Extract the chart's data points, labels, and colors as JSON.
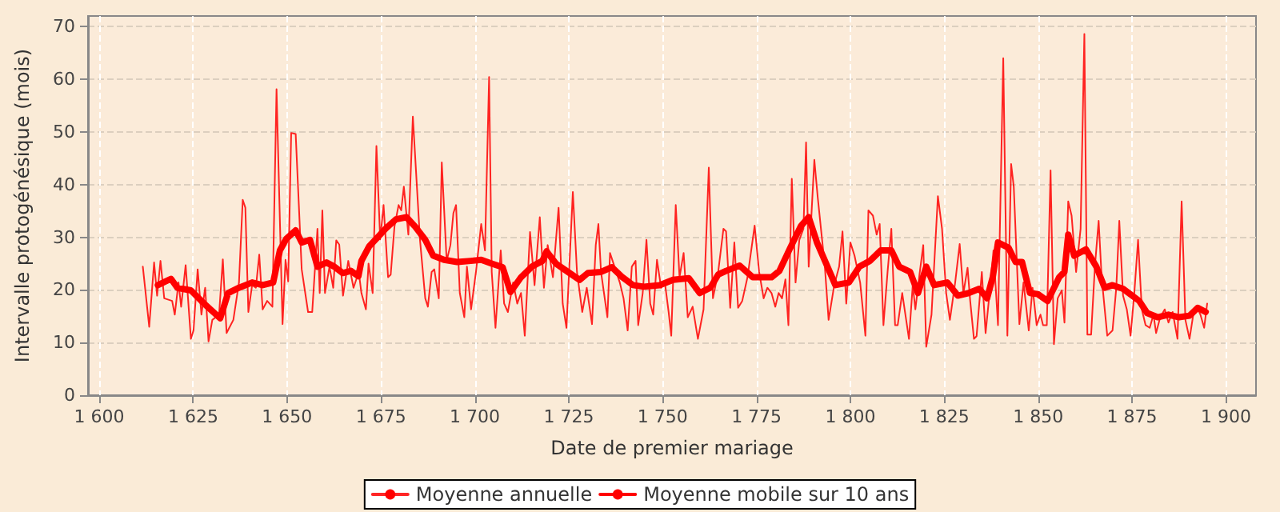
{
  "chart_data": {
    "type": "line",
    "xlabel": "Date de premier mariage",
    "ylabel": "Intervalle protogénésique (mois)",
    "xlim": [
      1597,
      1908
    ],
    "ylim": [
      0,
      72
    ],
    "xticks": [
      {
        "value": 1600,
        "label": "1 600"
      },
      {
        "value": 1625,
        "label": "1 625"
      },
      {
        "value": 1650,
        "label": "1 650"
      },
      {
        "value": 1675,
        "label": "1 675"
      },
      {
        "value": 1700,
        "label": "1 700"
      },
      {
        "value": 1725,
        "label": "1 725"
      },
      {
        "value": 1750,
        "label": "1 750"
      },
      {
        "value": 1775,
        "label": "1 775"
      },
      {
        "value": 1800,
        "label": "1 800"
      },
      {
        "value": 1825,
        "label": "1 825"
      },
      {
        "value": 1850,
        "label": "1 850"
      },
      {
        "value": 1875,
        "label": "1 875"
      },
      {
        "value": 1900,
        "label": "1 900"
      }
    ],
    "yticks": [
      0,
      10,
      20,
      30,
      40,
      50,
      60,
      70
    ],
    "grid": true,
    "legend": "bottom",
    "marker": "none",
    "series": [
      {
        "name": "Moyenne annuelle",
        "color": "#ff0000",
        "x": [
          1611.6,
          1613.3,
          1614.6,
          1615.4,
          1616.3,
          1617.3,
          1619.4,
          1620.1,
          1621.1,
          1621.8,
          1623.0,
          1624.4,
          1625.1,
          1626.2,
          1627.2,
          1628.2,
          1629.1,
          1630.1,
          1631.9,
          1632.9,
          1633.9,
          1635.7,
          1637.2,
          1638.2,
          1638.9,
          1639.7,
          1640.7,
          1641.7,
          1642.6,
          1643.5,
          1644.7,
          1646.1,
          1647.2,
          1648.8,
          1649.6,
          1650.3,
          1651.1,
          1652.3,
          1653.9,
          1655.6,
          1656.7,
          1658.1,
          1658.7,
          1659.4,
          1660.1,
          1661.3,
          1662.3,
          1663.1,
          1663.9,
          1664.9,
          1666.3,
          1667.7,
          1669.1,
          1669.8,
          1671.0,
          1671.7,
          1672.8,
          1673.8,
          1674.8,
          1675.7,
          1676.9,
          1677.6,
          1678.6,
          1679.7,
          1680.4,
          1681.1,
          1682.3,
          1683.5,
          1685.4,
          1686.8,
          1687.5,
          1688.5,
          1689.2,
          1690.4,
          1691.2,
          1692.5,
          1693.5,
          1694.3,
          1695.0,
          1696.0,
          1697.2,
          1697.9,
          1699.0,
          1700.3,
          1701.7,
          1702.7,
          1703.8,
          1704.5,
          1705.5,
          1706.9,
          1707.8,
          1708.8,
          1710.2,
          1711.3,
          1712.3,
          1713.3,
          1714.7,
          1715.9,
          1717.3,
          1718.4,
          1719.4,
          1720.8,
          1722.3,
          1723.4,
          1724.4,
          1726.1,
          1727.2,
          1728.6,
          1729.8,
          1731.2,
          1732.2,
          1732.9,
          1733.6,
          1735.3,
          1736.0,
          1737.2,
          1738.6,
          1739.6,
          1740.7,
          1741.8,
          1742.8,
          1743.5,
          1744.7,
          1745.7,
          1746.7,
          1747.5,
          1748.5,
          1749.6,
          1750.6,
          1751.6,
          1752.3,
          1753.5,
          1754.5,
          1755.6,
          1756.7,
          1758.0,
          1759.4,
          1760.9,
          1762.3,
          1763.4,
          1764.8,
          1766.2,
          1766.9,
          1768.0,
          1769.1,
          1770.1,
          1771.2,
          1772.6,
          1774.5,
          1775.7,
          1776.9,
          1777.9,
          1779.0,
          1780.0,
          1780.9,
          1781.8,
          1782.7,
          1783.5,
          1784.4,
          1785.4,
          1786.4,
          1787.5,
          1788.2,
          1788.9,
          1790.4,
          1791.3,
          1793.2,
          1794.2,
          1795.7,
          1797.0,
          1797.9,
          1798.9,
          1800.0,
          1801.1,
          1802.6,
          1804.0,
          1804.8,
          1806.0,
          1807.0,
          1807.8,
          1808.8,
          1809.9,
          1810.9,
          1811.9,
          1812.6,
          1813.8,
          1815.6,
          1816.6,
          1817.3,
          1818.4,
          1819.4,
          1820.2,
          1821.6,
          1823.3,
          1824.4,
          1825.5,
          1826.5,
          1827.9,
          1829.1,
          1830.1,
          1831.2,
          1831.9,
          1832.9,
          1833.6,
          1835.0,
          1836.0,
          1837.2,
          1838.1,
          1839.3,
          1840.7,
          1841.8,
          1842.8,
          1843.5,
          1845.0,
          1846.1,
          1847.5,
          1848.5,
          1849.6,
          1850.6,
          1851.3,
          1852.3,
          1853.3,
          1854.2,
          1855.2,
          1856.3,
          1857.0,
          1858.0,
          1858.9,
          1860.1,
          1861.3,
          1862.3,
          1863.1,
          1864.1,
          1865.1,
          1866.1,
          1866.9,
          1868.4,
          1869.8,
          1870.8,
          1871.6,
          1872.6,
          1873.6,
          1874.6,
          1875.6,
          1876.6,
          1877.6,
          1878.6,
          1879.7,
          1880.7,
          1881.4,
          1882.5,
          1883.7,
          1884.7,
          1885.8,
          1887.1,
          1888.2,
          1889.2,
          1890.3,
          1891.3,
          1892.2,
          1893.2,
          1894.2,
          1895.0
        ],
        "values": [
          24.4,
          13.0,
          25.2,
          18.9,
          25.5,
          18.4,
          17.9,
          15.3,
          21.4,
          16.8,
          24.7,
          10.7,
          12.3,
          23.9,
          15.3,
          20.4,
          10.2,
          14.3,
          15.3,
          25.8,
          11.8,
          14.3,
          21.4,
          37.1,
          35.6,
          15.8,
          20.9,
          20.4,
          26.7,
          16.3,
          17.9,
          16.8,
          58.1,
          13.5,
          25.7,
          21.6,
          49.8,
          49.6,
          23.9,
          15.8,
          15.8,
          31.6,
          19.4,
          35.1,
          19.4,
          24.4,
          20.4,
          29.4,
          28.6,
          18.9,
          25.5,
          20.4,
          23.4,
          19.4,
          16.3,
          25.0,
          19.4,
          47.3,
          29.6,
          36.1,
          22.4,
          22.9,
          32.0,
          36.1,
          35.1,
          39.6,
          30.5,
          52.9,
          29.5,
          18.4,
          16.8,
          23.4,
          23.9,
          18.4,
          44.2,
          25.5,
          28.5,
          34.6,
          36.1,
          19.4,
          14.8,
          24.4,
          16.3,
          23.4,
          32.5,
          27.5,
          60.4,
          23.4,
          12.8,
          27.5,
          17.4,
          15.8,
          21.4,
          17.4,
          19.4,
          11.3,
          31.0,
          20.9,
          33.8,
          20.4,
          28.5,
          22.4,
          35.6,
          17.4,
          12.8,
          38.6,
          23.4,
          15.8,
          20.4,
          13.5,
          28.5,
          32.5,
          23.4,
          14.8,
          27.0,
          24.4,
          21.4,
          18.4,
          12.3,
          24.4,
          25.5,
          13.3,
          19.4,
          29.5,
          17.4,
          15.3,
          25.7,
          20.4,
          21.4,
          15.8,
          11.3,
          36.1,
          22.4,
          27.0,
          14.8,
          16.8,
          10.7,
          16.3,
          43.2,
          18.4,
          23.4,
          31.6,
          31.1,
          16.6,
          29.0,
          16.6,
          17.9,
          22.4,
          32.2,
          23.4,
          18.4,
          20.4,
          19.4,
          16.8,
          19.4,
          18.4,
          22.0,
          13.3,
          41.1,
          21.4,
          29.5,
          31.6,
          48.0,
          24.4,
          44.7,
          37.6,
          24.4,
          14.3,
          20.9,
          24.4,
          31.1,
          17.4,
          29.0,
          26.5,
          21.4,
          11.3,
          35.1,
          34.1,
          30.5,
          32.5,
          13.3,
          23.4,
          31.6,
          13.3,
          13.3,
          19.4,
          10.7,
          20.9,
          16.3,
          22.9,
          28.5,
          9.2,
          15.3,
          37.8,
          31.6,
          19.4,
          14.3,
          21.4,
          28.7,
          19.4,
          24.2,
          17.9,
          10.7,
          11.2,
          23.4,
          11.8,
          20.4,
          27.5,
          13.3,
          64.0,
          11.3,
          43.9,
          39.6,
          13.5,
          21.4,
          12.3,
          20.4,
          13.3,
          15.3,
          13.3,
          13.3,
          42.7,
          9.7,
          18.4,
          19.9,
          13.8,
          36.8,
          34.1,
          23.4,
          31.6,
          68.6,
          11.5,
          11.5,
          24.4,
          33.1,
          22.4,
          11.3,
          12.3,
          20.4,
          33.1,
          18.9,
          16.3,
          11.3,
          19.4,
          29.5,
          16.3,
          13.3,
          12.8,
          15.3,
          11.8,
          14.8,
          16.3,
          13.8,
          15.8,
          10.7,
          36.8,
          14.3,
          10.7,
          15.3,
          16.8,
          15.3,
          12.8,
          17.4
        ]
      },
      {
        "name": "Moyenne mobile sur 10 ans",
        "color": "#ff0000",
        "x": [
          1615.6,
          1619.1,
          1620.8,
          1624.4,
          1627.9,
          1632.2,
          1634.3,
          1637.2,
          1640.7,
          1643.5,
          1646.3,
          1648.1,
          1649.8,
          1652.3,
          1653.9,
          1656.1,
          1658.1,
          1660.5,
          1662.6,
          1664.8,
          1667.0,
          1669.0,
          1669.8,
          1671.9,
          1674.8,
          1676.2,
          1679.0,
          1681.8,
          1684.0,
          1686.8,
          1688.9,
          1691.8,
          1695.3,
          1698.9,
          1701.7,
          1704.5,
          1707.4,
          1709.5,
          1712.3,
          1715.2,
          1718.0,
          1719.1,
          1721.6,
          1724.4,
          1727.9,
          1730.1,
          1733.6,
          1736.5,
          1739.3,
          1742.1,
          1745.0,
          1749.2,
          1752.8,
          1757.0,
          1759.9,
          1762.7,
          1764.8,
          1766.9,
          1770.5,
          1774.0,
          1779.0,
          1781.1,
          1784.0,
          1786.8,
          1788.9,
          1791.1,
          1793.9,
          1796.0,
          1799.6,
          1802.4,
          1805.2,
          1808.1,
          1810.9,
          1813.0,
          1815.9,
          1818.0,
          1820.2,
          1822.3,
          1825.8,
          1828.6,
          1831.5,
          1834.3,
          1836.4,
          1837.9,
          1839.3,
          1842.1,
          1844.0,
          1845.7,
          1847.8,
          1849.9,
          1852.5,
          1855.6,
          1857.0,
          1858.0,
          1859.6,
          1862.7,
          1865.5,
          1867.7,
          1869.8,
          1872.6,
          1876.9,
          1879.0,
          1881.8,
          1884.7,
          1887.5,
          1890.3,
          1892.5,
          1894.6
        ],
        "values": [
          20.9,
          22.1,
          20.4,
          19.9,
          17.4,
          14.6,
          19.4,
          20.4,
          21.4,
          20.9,
          21.4,
          27.5,
          29.7,
          31.3,
          29.0,
          29.5,
          24.4,
          25.2,
          24.4,
          23.2,
          23.6,
          22.6,
          25.5,
          28.3,
          30.5,
          31.6,
          33.4,
          33.8,
          32.1,
          29.5,
          26.5,
          25.7,
          25.3,
          25.5,
          25.7,
          25.0,
          24.3,
          19.6,
          22.4,
          24.4,
          25.5,
          27.3,
          25.0,
          23.6,
          21.9,
          23.2,
          23.4,
          24.3,
          22.4,
          20.9,
          20.6,
          20.9,
          21.9,
          22.2,
          19.4,
          20.4,
          22.9,
          23.6,
          24.6,
          22.4,
          22.4,
          23.6,
          28.0,
          32.1,
          33.8,
          29.0,
          24.4,
          20.9,
          21.4,
          24.4,
          25.5,
          27.5,
          27.5,
          24.4,
          23.4,
          19.4,
          24.4,
          20.9,
          21.4,
          18.9,
          19.4,
          20.2,
          18.4,
          22.4,
          29.0,
          28.0,
          25.3,
          25.3,
          19.4,
          19.2,
          17.9,
          22.4,
          23.4,
          30.5,
          26.5,
          27.7,
          24.4,
          20.4,
          20.9,
          20.2,
          17.9,
          15.6,
          14.8,
          15.3,
          14.8,
          15.1,
          16.6,
          15.8
        ]
      }
    ]
  }
}
